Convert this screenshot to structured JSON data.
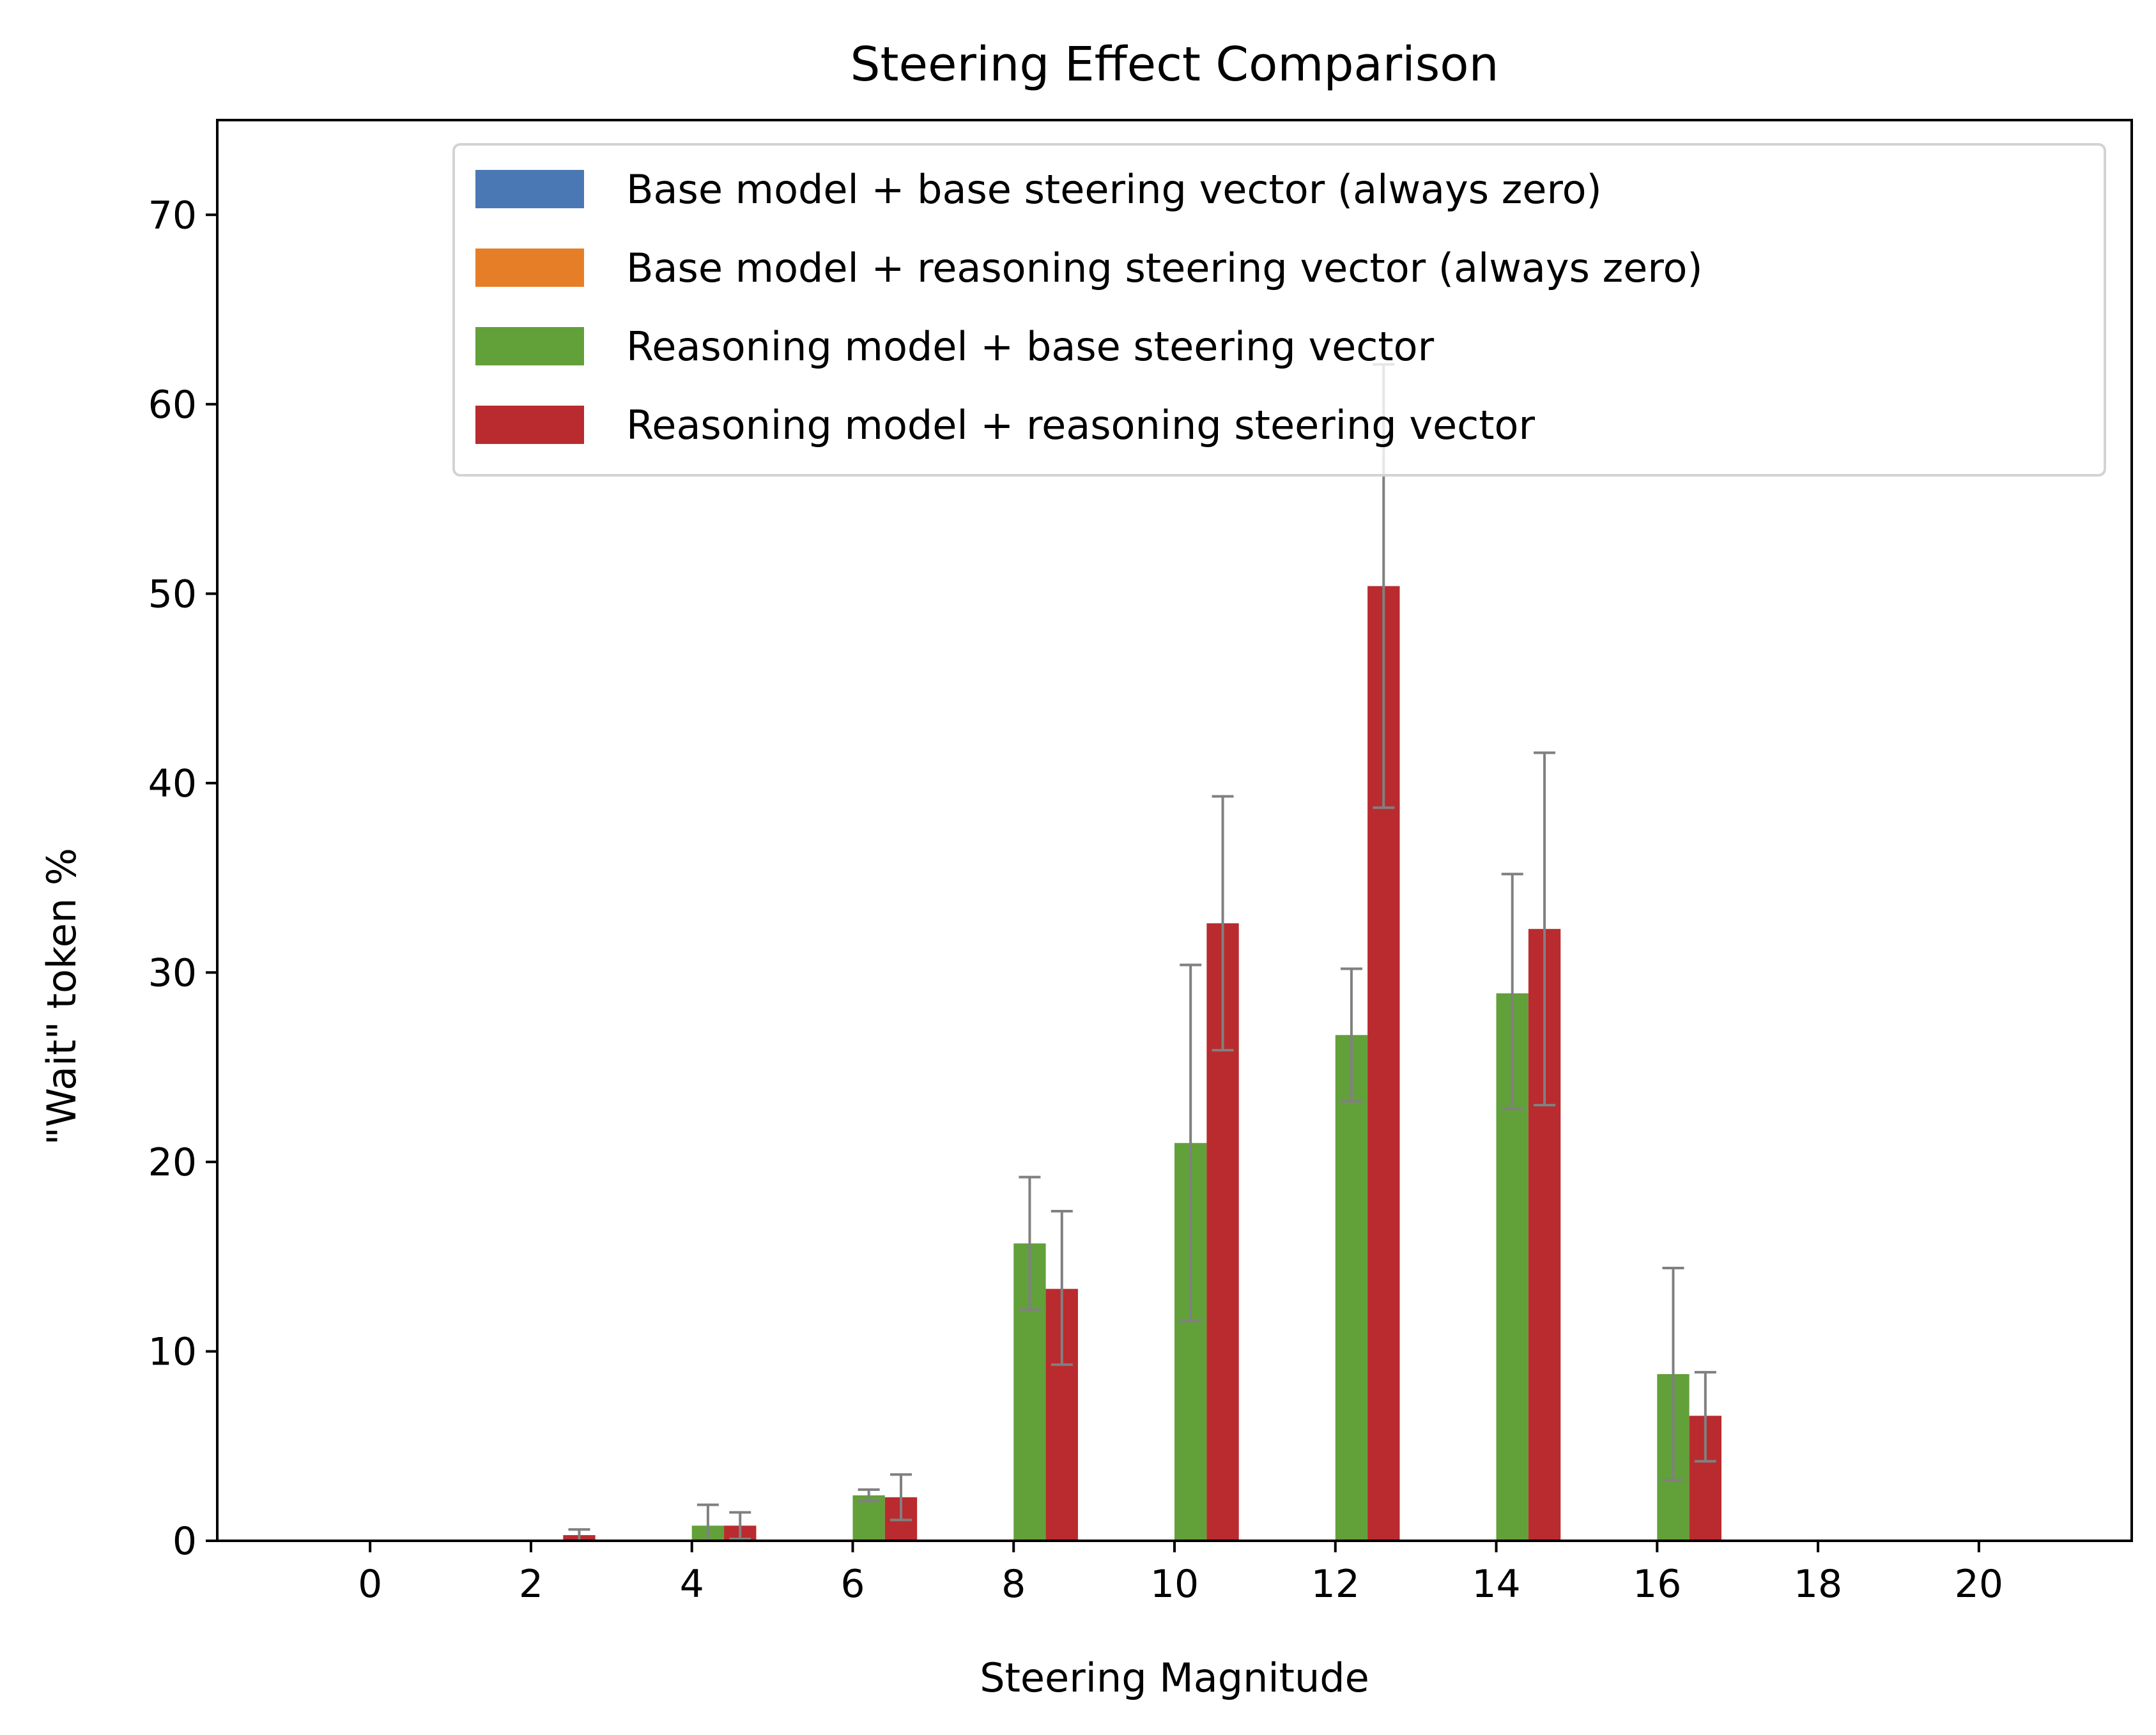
{
  "chart_data": {
    "type": "bar",
    "title": "Steering Effect Comparison",
    "xlabel": "Steering Magnitude",
    "ylabel": "\"Wait\" token %",
    "x": [
      0,
      2,
      4,
      6,
      8,
      10,
      12,
      14,
      16,
      18,
      20
    ],
    "xlim": [
      -1.9,
      21.9
    ],
    "ylim": [
      0,
      75
    ],
    "yticks": [
      0,
      10,
      20,
      30,
      40,
      50,
      60,
      70
    ],
    "legend_position": "upper-right",
    "series": [
      {
        "name": "Base model + base steering vector (always zero)",
        "color": "#4a78b4",
        "offset": -0.6,
        "values": [
          0,
          0,
          0,
          0,
          0,
          0,
          0,
          0,
          0,
          0,
          0
        ],
        "err_low": [
          null,
          null,
          null,
          null,
          null,
          null,
          null,
          null,
          null,
          null,
          null
        ],
        "err_high": [
          null,
          null,
          null,
          null,
          null,
          null,
          null,
          null,
          null,
          null,
          null
        ]
      },
      {
        "name": "Base model + reasoning steering vector (always zero)",
        "color": "#e67e28",
        "offset": -0.2,
        "values": [
          0,
          0,
          0,
          0,
          0,
          0,
          0,
          0,
          0,
          0,
          0
        ],
        "err_low": [
          null,
          null,
          null,
          null,
          null,
          null,
          null,
          null,
          null,
          null,
          null
        ],
        "err_high": [
          null,
          null,
          null,
          null,
          null,
          null,
          null,
          null,
          null,
          null,
          null
        ]
      },
      {
        "name": "Reasoning model + base steering vector",
        "color": "#62a03a",
        "offset": 0.2,
        "values": [
          0,
          0,
          0.8,
          2.4,
          15.7,
          21.0,
          26.7,
          28.9,
          8.8,
          0,
          0
        ],
        "err_low": [
          null,
          null,
          0,
          2.1,
          12.2,
          11.6,
          23.2,
          22.8,
          3.2,
          null,
          null
        ],
        "err_high": [
          null,
          null,
          1.9,
          2.7,
          19.2,
          30.4,
          30.2,
          35.2,
          14.4,
          null,
          null
        ]
      },
      {
        "name": "Reasoning model + reasoning steering vector",
        "color": "#b92b2e",
        "offset": 0.6,
        "values": [
          0,
          0.3,
          0.8,
          2.3,
          13.3,
          32.6,
          50.4,
          32.3,
          6.6,
          0,
          0
        ],
        "err_low": [
          null,
          0,
          0.1,
          1.1,
          9.3,
          25.9,
          38.7,
          23.0,
          4.2,
          null,
          null
        ],
        "err_high": [
          null,
          0.6,
          1.5,
          3.5,
          17.4,
          39.3,
          62.1,
          41.6,
          8.9,
          null,
          null
        ]
      }
    ]
  }
}
